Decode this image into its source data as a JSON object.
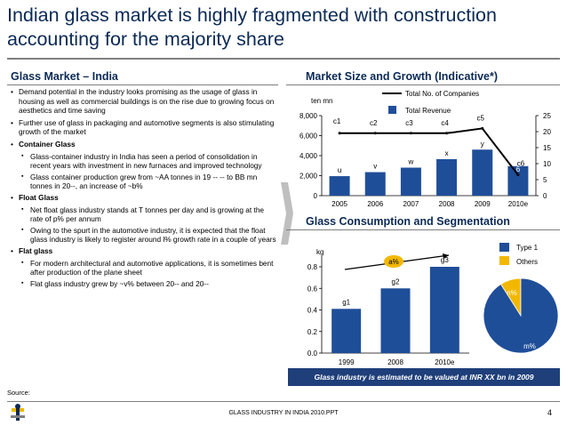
{
  "title": "Indian glass market is highly fragmented with construction accounting for the majority share",
  "left": {
    "heading": "Glass Market – India",
    "bullets": [
      {
        "text": "Demand potential in the industry looks promising as the usage of glass in housing as well as commercial buildings is on the rise due to growing focus on aesthetics and time saving",
        "subs": []
      },
      {
        "text": "Further use of glass in packaging and automotive segments is also stimulating growth of the market",
        "subs": []
      },
      {
        "text": "Container Glass",
        "bold": true,
        "subs": [
          "Glass-container industry in India has seen a period of consolidation in recent years with investment in new furnaces and improved technology",
          "Glass container production grew from ~AA tonnes in 19 -- -- to BB mn tonnes in 20--, an increase of ~b%"
        ]
      },
      {
        "text": "Float Glass",
        "bold": true,
        "subs": [
          "Net float glass industry stands at T tonnes per day and is growing at the rate of p% per annum",
          "Owing to the spurt in the automotive industry, it is expected that the float glass industry is likely to register around l% growth rate in a couple of years"
        ]
      },
      {
        "text": "Flat glass",
        "bold": true,
        "subs": [
          "For modern architectural and automotive applications, it is sometimes bent after production of the plane sheet",
          "Flat glass industry grew by ~v% between 20-- and 20--"
        ]
      }
    ]
  },
  "chart1": {
    "heading": "Market Size and Growth (Indicative*)",
    "unit": "ten mn",
    "legend_line": "Total No. of Companies",
    "legend_bar": "Total Revenue",
    "left_ticks": [
      "0",
      "2,000",
      "4,000",
      "6,000",
      "8,000"
    ],
    "right_ticks": [
      "0",
      "5",
      "10",
      "15",
      "20",
      "25"
    ]
  },
  "chart2": {
    "heading": "Glass Consumption and Segmentation",
    "unit": "kg",
    "ticks": [
      "0.0",
      "0.2",
      "0.4",
      "0.6",
      "0.8"
    ],
    "growth_label": "a%",
    "legend": [
      {
        "name": "Type 1",
        "color": "#1f4e99"
      },
      {
        "name": "Others",
        "color": "#f2b800"
      }
    ],
    "pie_labels": {
      "small": "n%",
      "large": "m%"
    }
  },
  "chart_data": [
    {
      "type": "bar",
      "title": "Market Size and Growth (Indicative*)",
      "categories": [
        "2005",
        "2006",
        "2007",
        "2008",
        "2009",
        "2010e"
      ],
      "ylabel": "ten mn",
      "ylim": [
        0,
        8000
      ],
      "y2lim": [
        0,
        25
      ],
      "series": [
        {
          "name": "Total Revenue",
          "type": "bar",
          "values": [
            1950,
            2350,
            2800,
            3650,
            4600,
            2950
          ],
          "labels": [
            "u",
            "v",
            "w",
            "x",
            "y",
            "6"
          ],
          "color": "#1f4e99"
        },
        {
          "name": "Total No. of Companies",
          "type": "line",
          "axis": "right",
          "values": [
            19.5,
            19.5,
            19.5,
            19.5,
            21,
            6.5
          ],
          "labels": [
            "c1",
            "c2",
            "c3",
            "c4",
            "c5",
            "c6"
          ],
          "color": "#000000"
        }
      ],
      "legend": "top",
      "grid": false
    },
    {
      "type": "bar",
      "title": "Glass Consumption and Segmentation",
      "categories": [
        "1999",
        "2008",
        "2010e"
      ],
      "ylabel": "kg",
      "ylim": [
        0,
        0.9
      ],
      "series": [
        {
          "values": [
            0.41,
            0.6,
            0.8
          ],
          "labels": [
            "g1",
            "g2",
            "g3"
          ],
          "color": "#1f4e99"
        }
      ]
    },
    {
      "type": "pie",
      "series": [
        {
          "name": "Type 1",
          "value": 91,
          "label": "m%",
          "color": "#1f4e99"
        },
        {
          "name": "Others",
          "value": 9,
          "label": "n%",
          "color": "#f2b800"
        }
      ]
    }
  ],
  "banner": "Glass industry is estimated to be valued at INR XX bn in 2009",
  "footer": {
    "source": "Source:",
    "doc": "GLASS INDUSTRY IN INDIA 2010.PPT",
    "page": "4"
  }
}
